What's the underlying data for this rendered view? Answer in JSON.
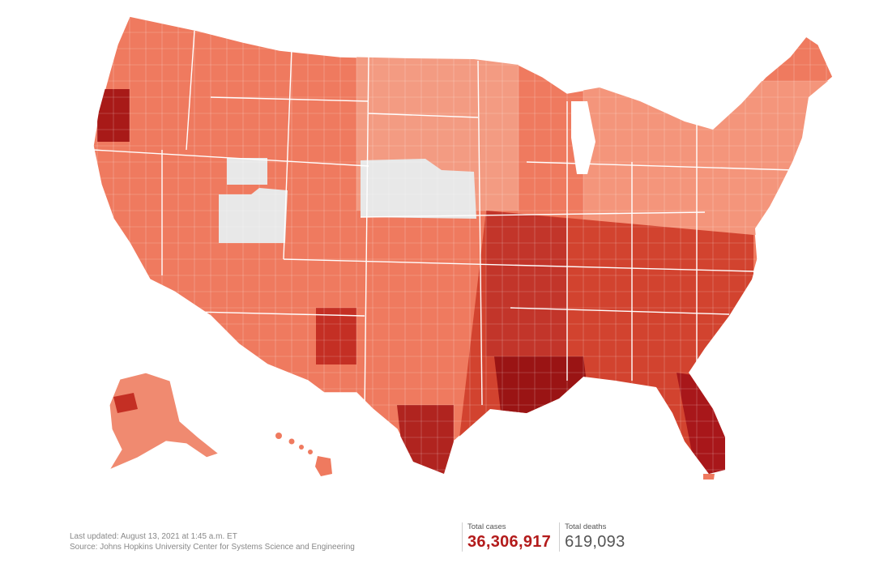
{
  "footer": {
    "last_updated": "Last updated: August 13, 2021 at 1:45 a.m. ET",
    "source": "Source: Johns Hopkins University Center for Systems Science and Engineering"
  },
  "totals": {
    "cases_label": "Total cases",
    "cases_value": "36,306,917",
    "deaths_label": "Total deaths",
    "deaths_value": "619,093"
  },
  "map": {
    "colors": {
      "no_data": "#e8e8e8",
      "level1": "#f6a58f",
      "level2": "#ef7a5f",
      "level3": "#e25842",
      "level4": "#c42f24",
      "level5": "#8e0f12",
      "borders": "#ffffff",
      "accent_cases": "#b31b1b"
    }
  }
}
